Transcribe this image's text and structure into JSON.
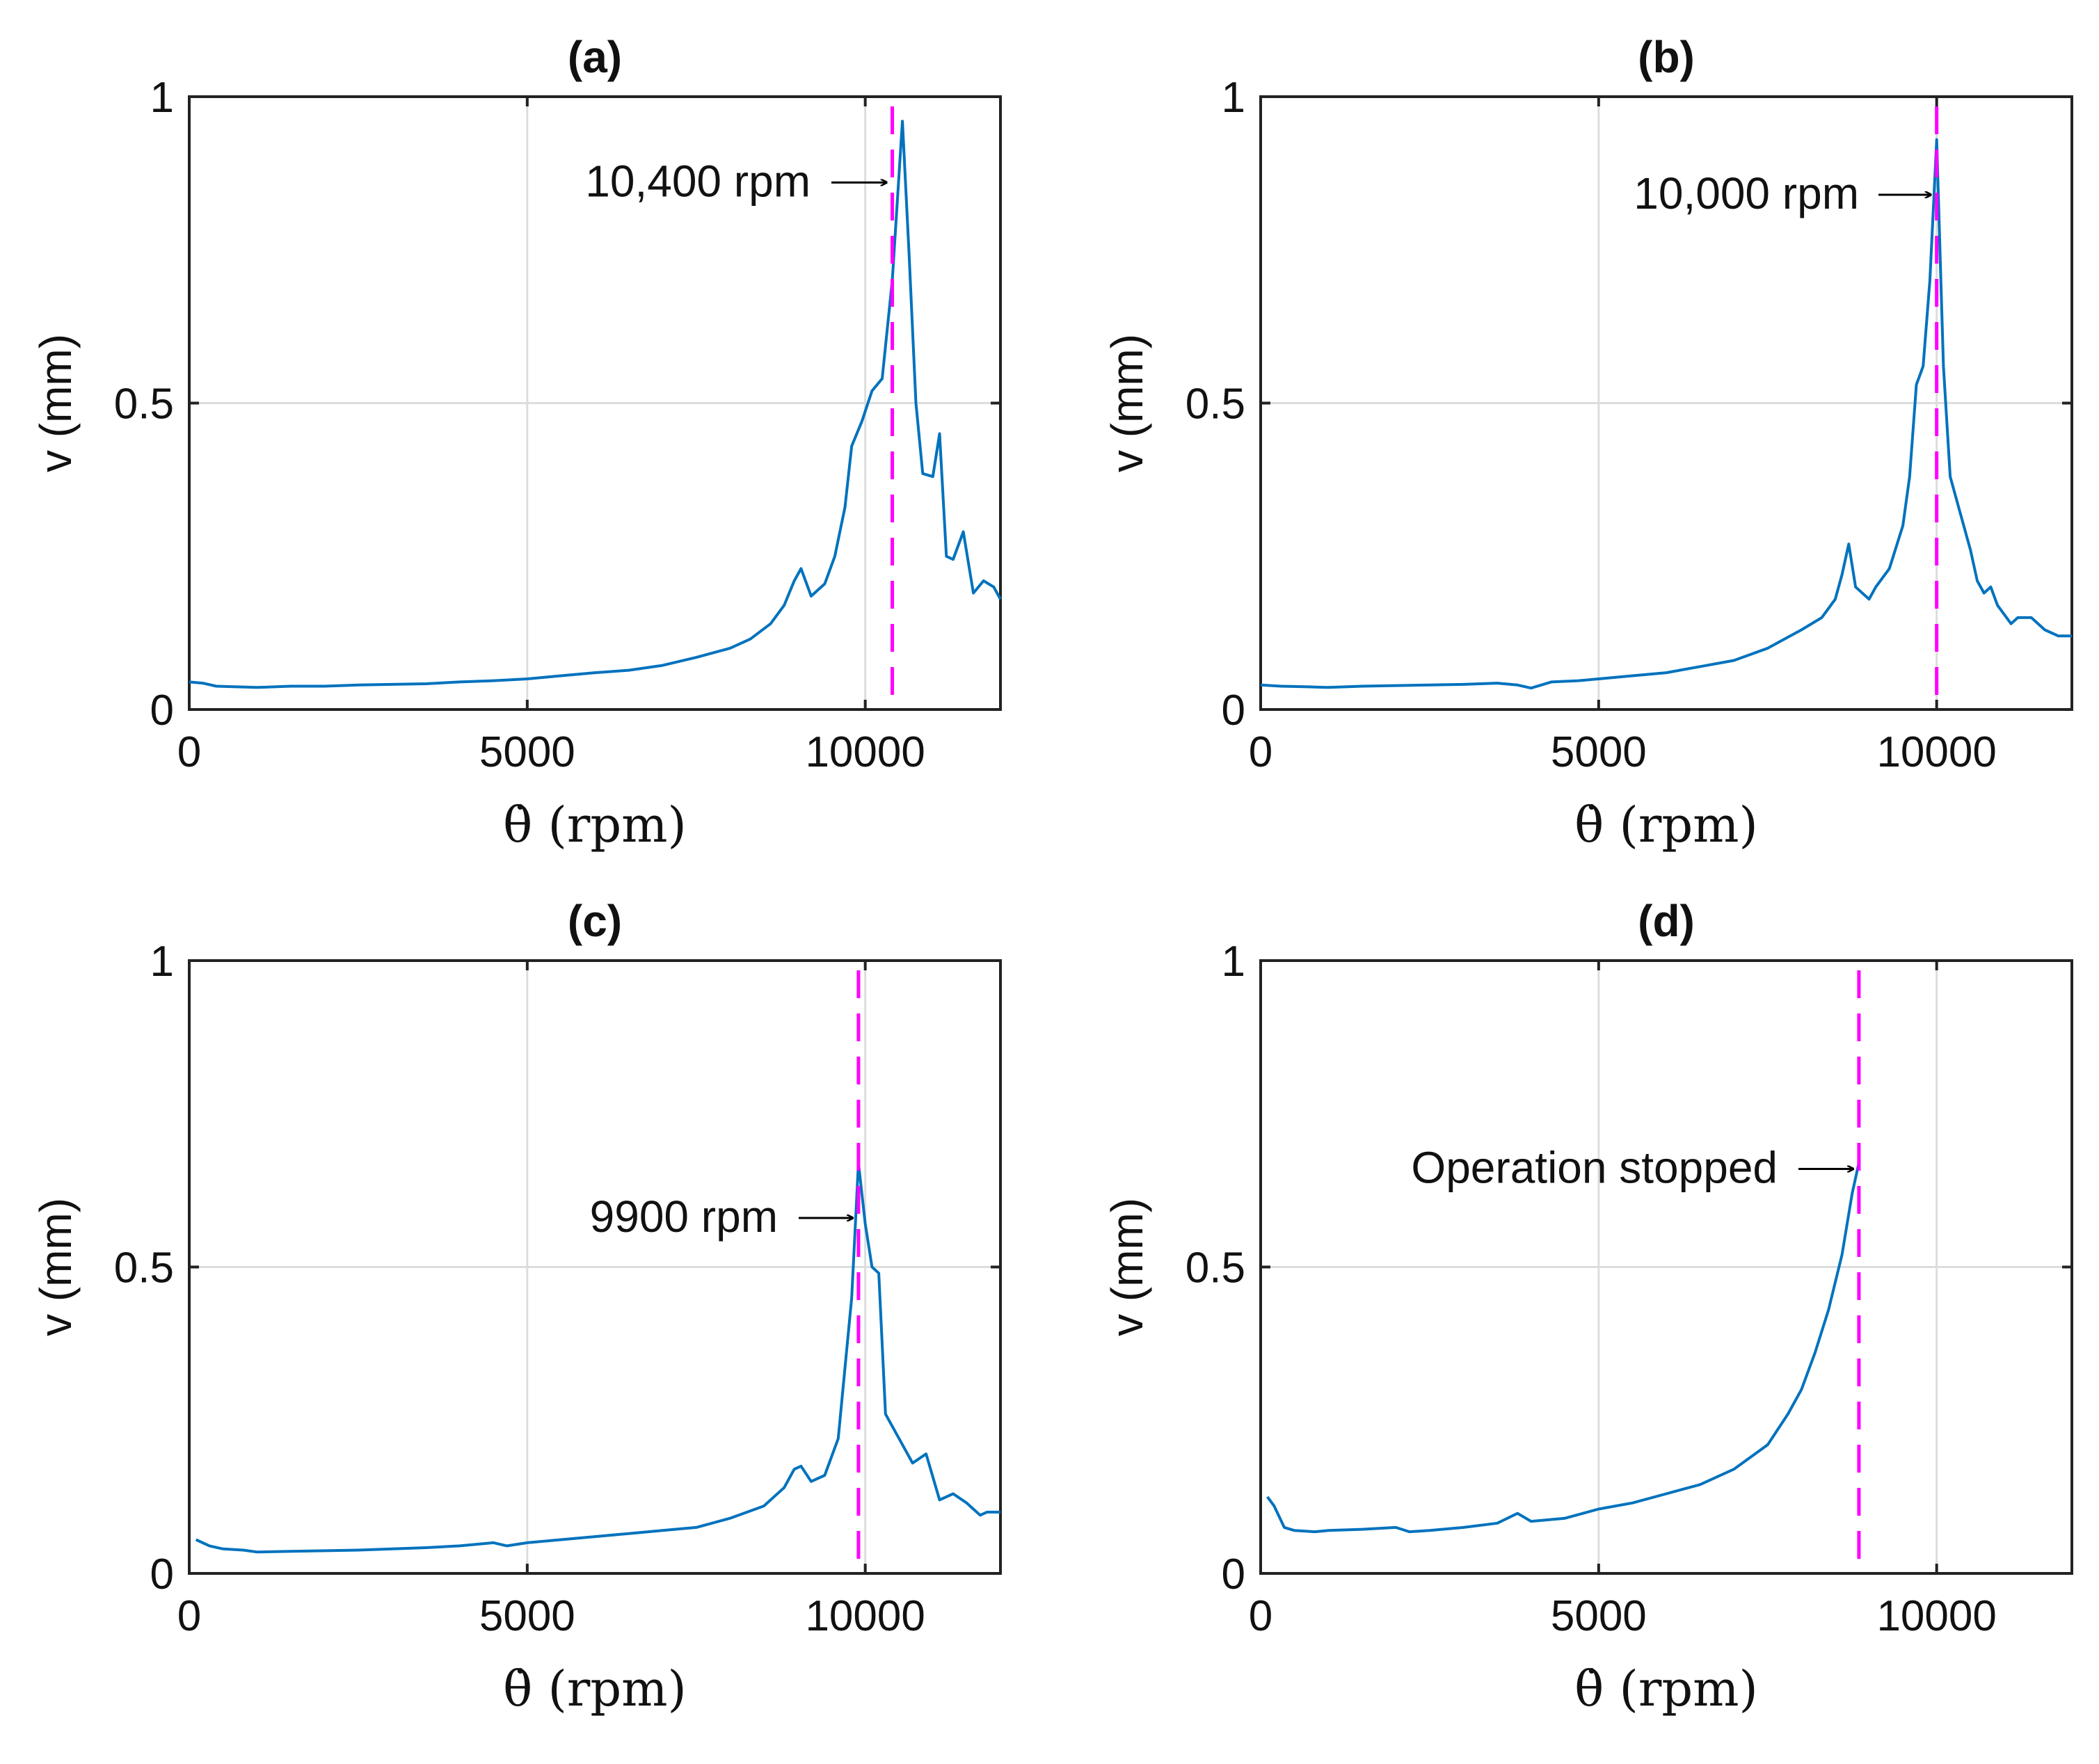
{
  "chart_data": [
    {
      "type": "line",
      "title": "(a)",
      "xlabel": "θ̇ (rpm)",
      "ylabel": "v (mm)",
      "xlim": [
        0,
        12000
      ],
      "ylim": [
        0,
        1
      ],
      "xticks": [
        "0",
        "5000",
        "10000"
      ],
      "yticks": [
        "0",
        "0.5",
        "1"
      ],
      "series": [
        {
          "name": "v",
          "x": [
            0,
            200,
            400,
            700,
            1000,
            1500,
            2000,
            2500,
            3000,
            3500,
            4000,
            4500,
            5000,
            5500,
            6000,
            6500,
            7000,
            7500,
            8000,
            8300,
            8600,
            8800,
            8950,
            9050,
            9200,
            9400,
            9550,
            9700,
            9800,
            9950,
            10100,
            10250,
            10400,
            10550,
            10650,
            10750,
            10850,
            11000,
            11100,
            11200,
            11300,
            11450,
            11600,
            11750,
            11900,
            12000
          ],
          "values": [
            0.045,
            0.043,
            0.038,
            0.037,
            0.036,
            0.038,
            0.038,
            0.04,
            0.041,
            0.042,
            0.045,
            0.047,
            0.05,
            0.055,
            0.06,
            0.064,
            0.072,
            0.085,
            0.1,
            0.115,
            0.14,
            0.17,
            0.21,
            0.23,
            0.185,
            0.205,
            0.25,
            0.33,
            0.43,
            0.47,
            0.52,
            0.54,
            0.7,
            0.96,
            0.74,
            0.5,
            0.385,
            0.38,
            0.45,
            0.25,
            0.245,
            0.29,
            0.19,
            0.21,
            0.2,
            0.18
          ]
        }
      ],
      "marker_line": {
        "x": 10400,
        "style": "dashed",
        "color": "#ff00ff"
      },
      "annotation": {
        "text": "10,400 rpm",
        "x": 10400,
        "y": 0.86
      }
    },
    {
      "type": "line",
      "title": "(b)",
      "xlabel": "θ̇ (rpm)",
      "ylabel": "v (mm)",
      "xlim": [
        0,
        12000
      ],
      "ylim": [
        0,
        1
      ],
      "xticks": [
        "0",
        "5000",
        "10000"
      ],
      "yticks": [
        "0",
        "0.5",
        "1"
      ],
      "series": [
        {
          "name": "v",
          "x": [
            0,
            300,
            700,
            1000,
            1500,
            2000,
            2500,
            3000,
            3500,
            3800,
            4000,
            4300,
            4700,
            5000,
            5500,
            6000,
            6500,
            7000,
            7500,
            8000,
            8300,
            8500,
            8600,
            8700,
            8800,
            9000,
            9100,
            9300,
            9500,
            9600,
            9700,
            9800,
            9900,
            10000,
            10100,
            10200,
            10350,
            10500,
            10600,
            10700,
            10800,
            10900,
            11100,
            11200,
            11400,
            11600,
            11800,
            12000
          ],
          "values": [
            0.04,
            0.038,
            0.037,
            0.036,
            0.038,
            0.039,
            0.04,
            0.041,
            0.043,
            0.04,
            0.035,
            0.045,
            0.047,
            0.05,
            0.055,
            0.06,
            0.07,
            0.08,
            0.1,
            0.13,
            0.15,
            0.18,
            0.22,
            0.27,
            0.2,
            0.18,
            0.2,
            0.23,
            0.3,
            0.38,
            0.53,
            0.56,
            0.7,
            0.93,
            0.56,
            0.38,
            0.32,
            0.26,
            0.21,
            0.19,
            0.2,
            0.17,
            0.14,
            0.15,
            0.15,
            0.13,
            0.12,
            0.12
          ]
        }
      ],
      "marker_line": {
        "x": 10000,
        "style": "dashed",
        "color": "#ff00ff"
      },
      "annotation": {
        "text": "10,000 rpm",
        "x": 10000,
        "y": 0.84
      }
    },
    {
      "type": "line",
      "title": "(c)",
      "xlabel": "θ̇ (rpm)",
      "ylabel": "v (mm)",
      "xlim": [
        0,
        12000
      ],
      "ylim": [
        0,
        1
      ],
      "xticks": [
        "0",
        "5000",
        "10000"
      ],
      "yticks": [
        "0",
        "0.5",
        "1"
      ],
      "series": [
        {
          "name": "v",
          "x": [
            100,
            300,
            500,
            800,
            1000,
            1500,
            2000,
            2500,
            3000,
            3500,
            4000,
            4500,
            4700,
            5000,
            5500,
            6000,
            6500,
            7000,
            7500,
            8000,
            8500,
            8800,
            8950,
            9050,
            9200,
            9400,
            9600,
            9800,
            9900,
            10000,
            10100,
            10200,
            10300,
            10500,
            10700,
            10900,
            11100,
            11300,
            11500,
            11700,
            11800,
            12000
          ],
          "values": [
            0.055,
            0.045,
            0.04,
            0.038,
            0.035,
            0.036,
            0.037,
            0.038,
            0.04,
            0.042,
            0.045,
            0.05,
            0.045,
            0.05,
            0.055,
            0.06,
            0.065,
            0.07,
            0.075,
            0.09,
            0.11,
            0.14,
            0.17,
            0.175,
            0.15,
            0.16,
            0.22,
            0.45,
            0.67,
            0.57,
            0.5,
            0.49,
            0.26,
            0.22,
            0.18,
            0.195,
            0.12,
            0.13,
            0.115,
            0.095,
            0.1,
            0.1
          ]
        }
      ],
      "marker_line": {
        "x": 9900,
        "style": "dashed",
        "color": "#ff00ff"
      },
      "annotation": {
        "text": "9900 rpm",
        "x": 9900,
        "y": 0.58
      }
    },
    {
      "type": "line",
      "title": "(d)",
      "xlabel": "θ̇ (rpm)",
      "ylabel": "v (mm)",
      "xlim": [
        0,
        12000
      ],
      "ylim": [
        0,
        1
      ],
      "xticks": [
        "0",
        "5000",
        "10000"
      ],
      "yticks": [
        "0",
        "0.5",
        "1"
      ],
      "series": [
        {
          "name": "v",
          "x": [
            100,
            200,
            350,
            500,
            800,
            1000,
            1500,
            2000,
            2200,
            2500,
            3000,
            3500,
            3800,
            4000,
            4500,
            5000,
            5500,
            6000,
            6500,
            7000,
            7500,
            7800,
            8000,
            8200,
            8400,
            8600,
            8750,
            8850
          ],
          "values": [
            0.125,
            0.11,
            0.075,
            0.07,
            0.068,
            0.07,
            0.072,
            0.075,
            0.068,
            0.07,
            0.075,
            0.082,
            0.098,
            0.085,
            0.09,
            0.105,
            0.115,
            0.13,
            0.145,
            0.17,
            0.21,
            0.26,
            0.3,
            0.36,
            0.43,
            0.52,
            0.62,
            0.67
          ]
        }
      ],
      "marker_line": {
        "x": 8850,
        "style": "dashed",
        "color": "#ff00ff"
      },
      "annotation": {
        "text": "Operation stopped",
        "x": 8850,
        "y": 0.66
      }
    }
  ],
  "colors": {
    "series_line": "#0072bd",
    "marker_line": "#ff00ff",
    "axes": "#222222",
    "grid": "#dddddd"
  }
}
